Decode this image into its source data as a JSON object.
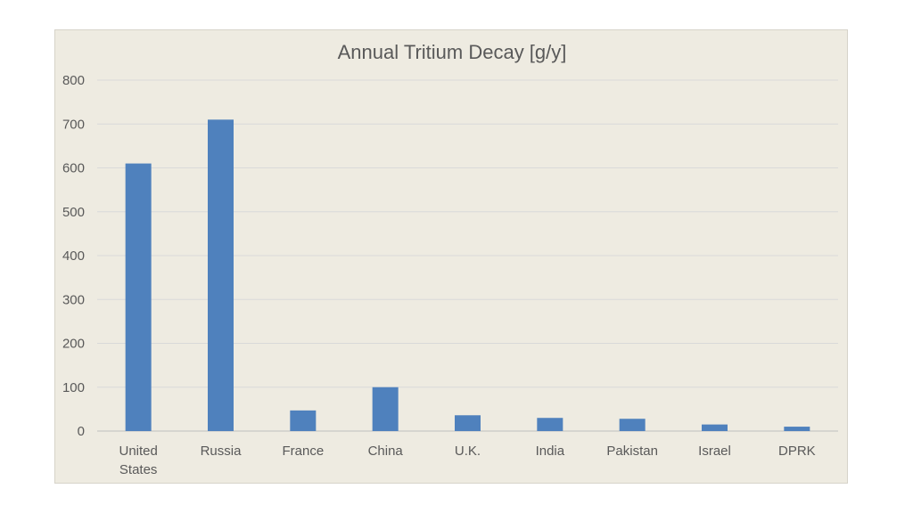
{
  "chart_data": {
    "type": "bar",
    "title": "Annual Tritium Decay [g/y]",
    "xlabel": "",
    "ylabel": "",
    "categories": [
      [
        "United",
        "States"
      ],
      [
        "Russia"
      ],
      [
        "France"
      ],
      [
        "China"
      ],
      [
        "U.K."
      ],
      [
        "India"
      ],
      [
        "Pakistan"
      ],
      [
        "Israel"
      ],
      [
        "DPRK"
      ]
    ],
    "values": [
      610,
      710,
      47,
      100,
      36,
      30,
      28,
      15,
      10
    ],
    "ylim": [
      0,
      800
    ],
    "yticks": [
      0,
      100,
      200,
      300,
      400,
      500,
      600,
      700,
      800
    ],
    "grid": true,
    "legend": "none",
    "bar_color": "#4f81bd",
    "background_color": "#eeebe1"
  }
}
